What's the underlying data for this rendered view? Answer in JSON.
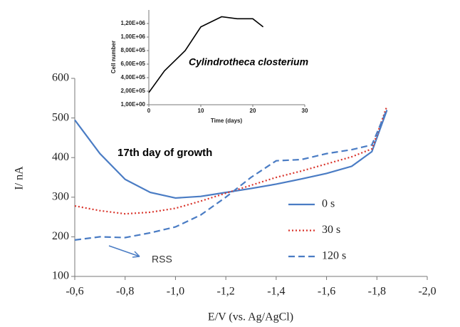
{
  "chart_data": [
    {
      "type": "line",
      "xlabel": "E/V (vs. Ag/AgCl)",
      "ylabel": "I/ nA",
      "annotations": [
        "17th day of growth",
        "RSS"
      ],
      "x": [
        -0.6,
        -0.7,
        -0.8,
        -0.9,
        -1.0,
        -1.1,
        -1.2,
        -1.3,
        -1.4,
        -1.5,
        -1.6,
        -1.7,
        -1.78,
        -1.84
      ],
      "series": [
        {
          "name": "0 s",
          "color": "#4a7cc4",
          "style": "solid",
          "values": [
            495,
            410,
            345,
            312,
            298,
            302,
            312,
            322,
            333,
            346,
            360,
            378,
            415,
            520
          ]
        },
        {
          "name": "30 s",
          "color": "#d9342b",
          "style": "dotted",
          "values": [
            278,
            266,
            258,
            262,
            272,
            290,
            310,
            330,
            350,
            366,
            384,
            402,
            422,
            530
          ]
        },
        {
          "name": "120 s",
          "color": "#4a7cc4",
          "style": "dashed",
          "values": [
            192,
            200,
            198,
            210,
            225,
            255,
            300,
            350,
            392,
            395,
            410,
            420,
            432,
            522
          ]
        }
      ],
      "xlim": [
        -0.6,
        -2.0
      ],
      "xticks": [
        {
          "value": -0.6,
          "label": "-0,6"
        },
        {
          "value": -0.8,
          "label": "-0,8"
        },
        {
          "value": -1.0,
          "label": "-1,0"
        },
        {
          "value": -1.2,
          "label": "-1,2"
        },
        {
          "value": -1.4,
          "label": "-1,4"
        },
        {
          "value": -1.6,
          "label": "-1,6"
        },
        {
          "value": -1.8,
          "label": "-1,8"
        },
        {
          "value": -2.0,
          "label": "-2,0"
        }
      ],
      "ylim": [
        100,
        600
      ],
      "yticks": [
        100,
        200,
        300,
        400,
        500,
        600
      ]
    },
    {
      "type": "line",
      "title": "Cylindrotheca closterium",
      "xlabel": "Time (days)",
      "ylabel": "Cell number",
      "x": [
        0,
        3,
        7,
        10,
        14,
        17,
        20,
        22
      ],
      "series": [
        {
          "color": "#000000",
          "style": "solid",
          "values": [
            180000,
            500000,
            800000,
            1150000,
            1300000,
            1270000,
            1270000,
            1150000
          ]
        }
      ],
      "xlim": [
        0,
        30
      ],
      "xticks": [
        0,
        10,
        20,
        30
      ],
      "ylim": [
        1,
        1400000
      ],
      "yticks": [
        {
          "value": 1,
          "label": "1,00E+00"
        },
        {
          "value": 200000,
          "label": "2,00E+05"
        },
        {
          "value": 400000,
          "label": "4,00E+05"
        },
        {
          "value": 600000,
          "label": "6,00E+05"
        },
        {
          "value": 800000,
          "label": "8,00E+05"
        },
        {
          "value": 1000000,
          "label": "1,00E+06"
        },
        {
          "value": 1200000,
          "label": "1,20E+06"
        }
      ]
    }
  ]
}
